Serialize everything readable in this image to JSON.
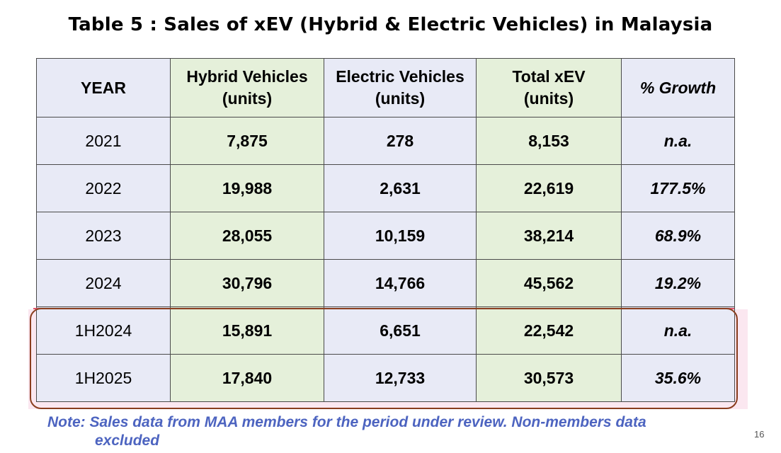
{
  "title": "Table 5 : Sales of xEV (Hybrid & Electric Vehicles) in Malaysia",
  "headers": {
    "year": "YEAR",
    "hybrid_line1": "Hybrid Vehicles",
    "hybrid_line2": "(units)",
    "electric_line1": "Electric Vehicles",
    "electric_line2": "(units)",
    "total_line1": "Total xEV",
    "total_line2": "(units)",
    "growth": "% Growth"
  },
  "rows": [
    {
      "year": "2021",
      "hybrid": "7,875",
      "electric": "278",
      "total": "8,153",
      "growth": "n.a."
    },
    {
      "year": "2022",
      "hybrid": "19,988",
      "electric": "2,631",
      "total": "22,619",
      "growth": "177.5%"
    },
    {
      "year": "2023",
      "hybrid": "28,055",
      "electric": "10,159",
      "total": "38,214",
      "growth": "68.9%"
    },
    {
      "year": "2024",
      "hybrid": "30,796",
      "electric": "14,766",
      "total": "45,562",
      "growth": "19.2%"
    },
    {
      "year": "1H2024",
      "hybrid": "15,891",
      "electric": "6,651",
      "total": "22,542",
      "growth": "n.a."
    },
    {
      "year": "1H2025",
      "hybrid": "17,840",
      "electric": "12,733",
      "total": "30,573",
      "growth": "35.6%"
    }
  ],
  "note": {
    "line1": "Note: Sales data from MAA members for the period under review. Non-members data",
    "line2": "excluded"
  },
  "page_number": "16",
  "colors": {
    "year_column_bg": "#e8eaf6",
    "hybrid_column_bg": "#e5f0da",
    "electric_column_bg": "#e8eaf6",
    "total_column_bg": "#e5f0da",
    "growth_column_bg": "#e8eaf6",
    "highlight_border": "#8a3d1e",
    "highlight_band": "#fbe7f0",
    "note_text": "#4d64c0"
  }
}
